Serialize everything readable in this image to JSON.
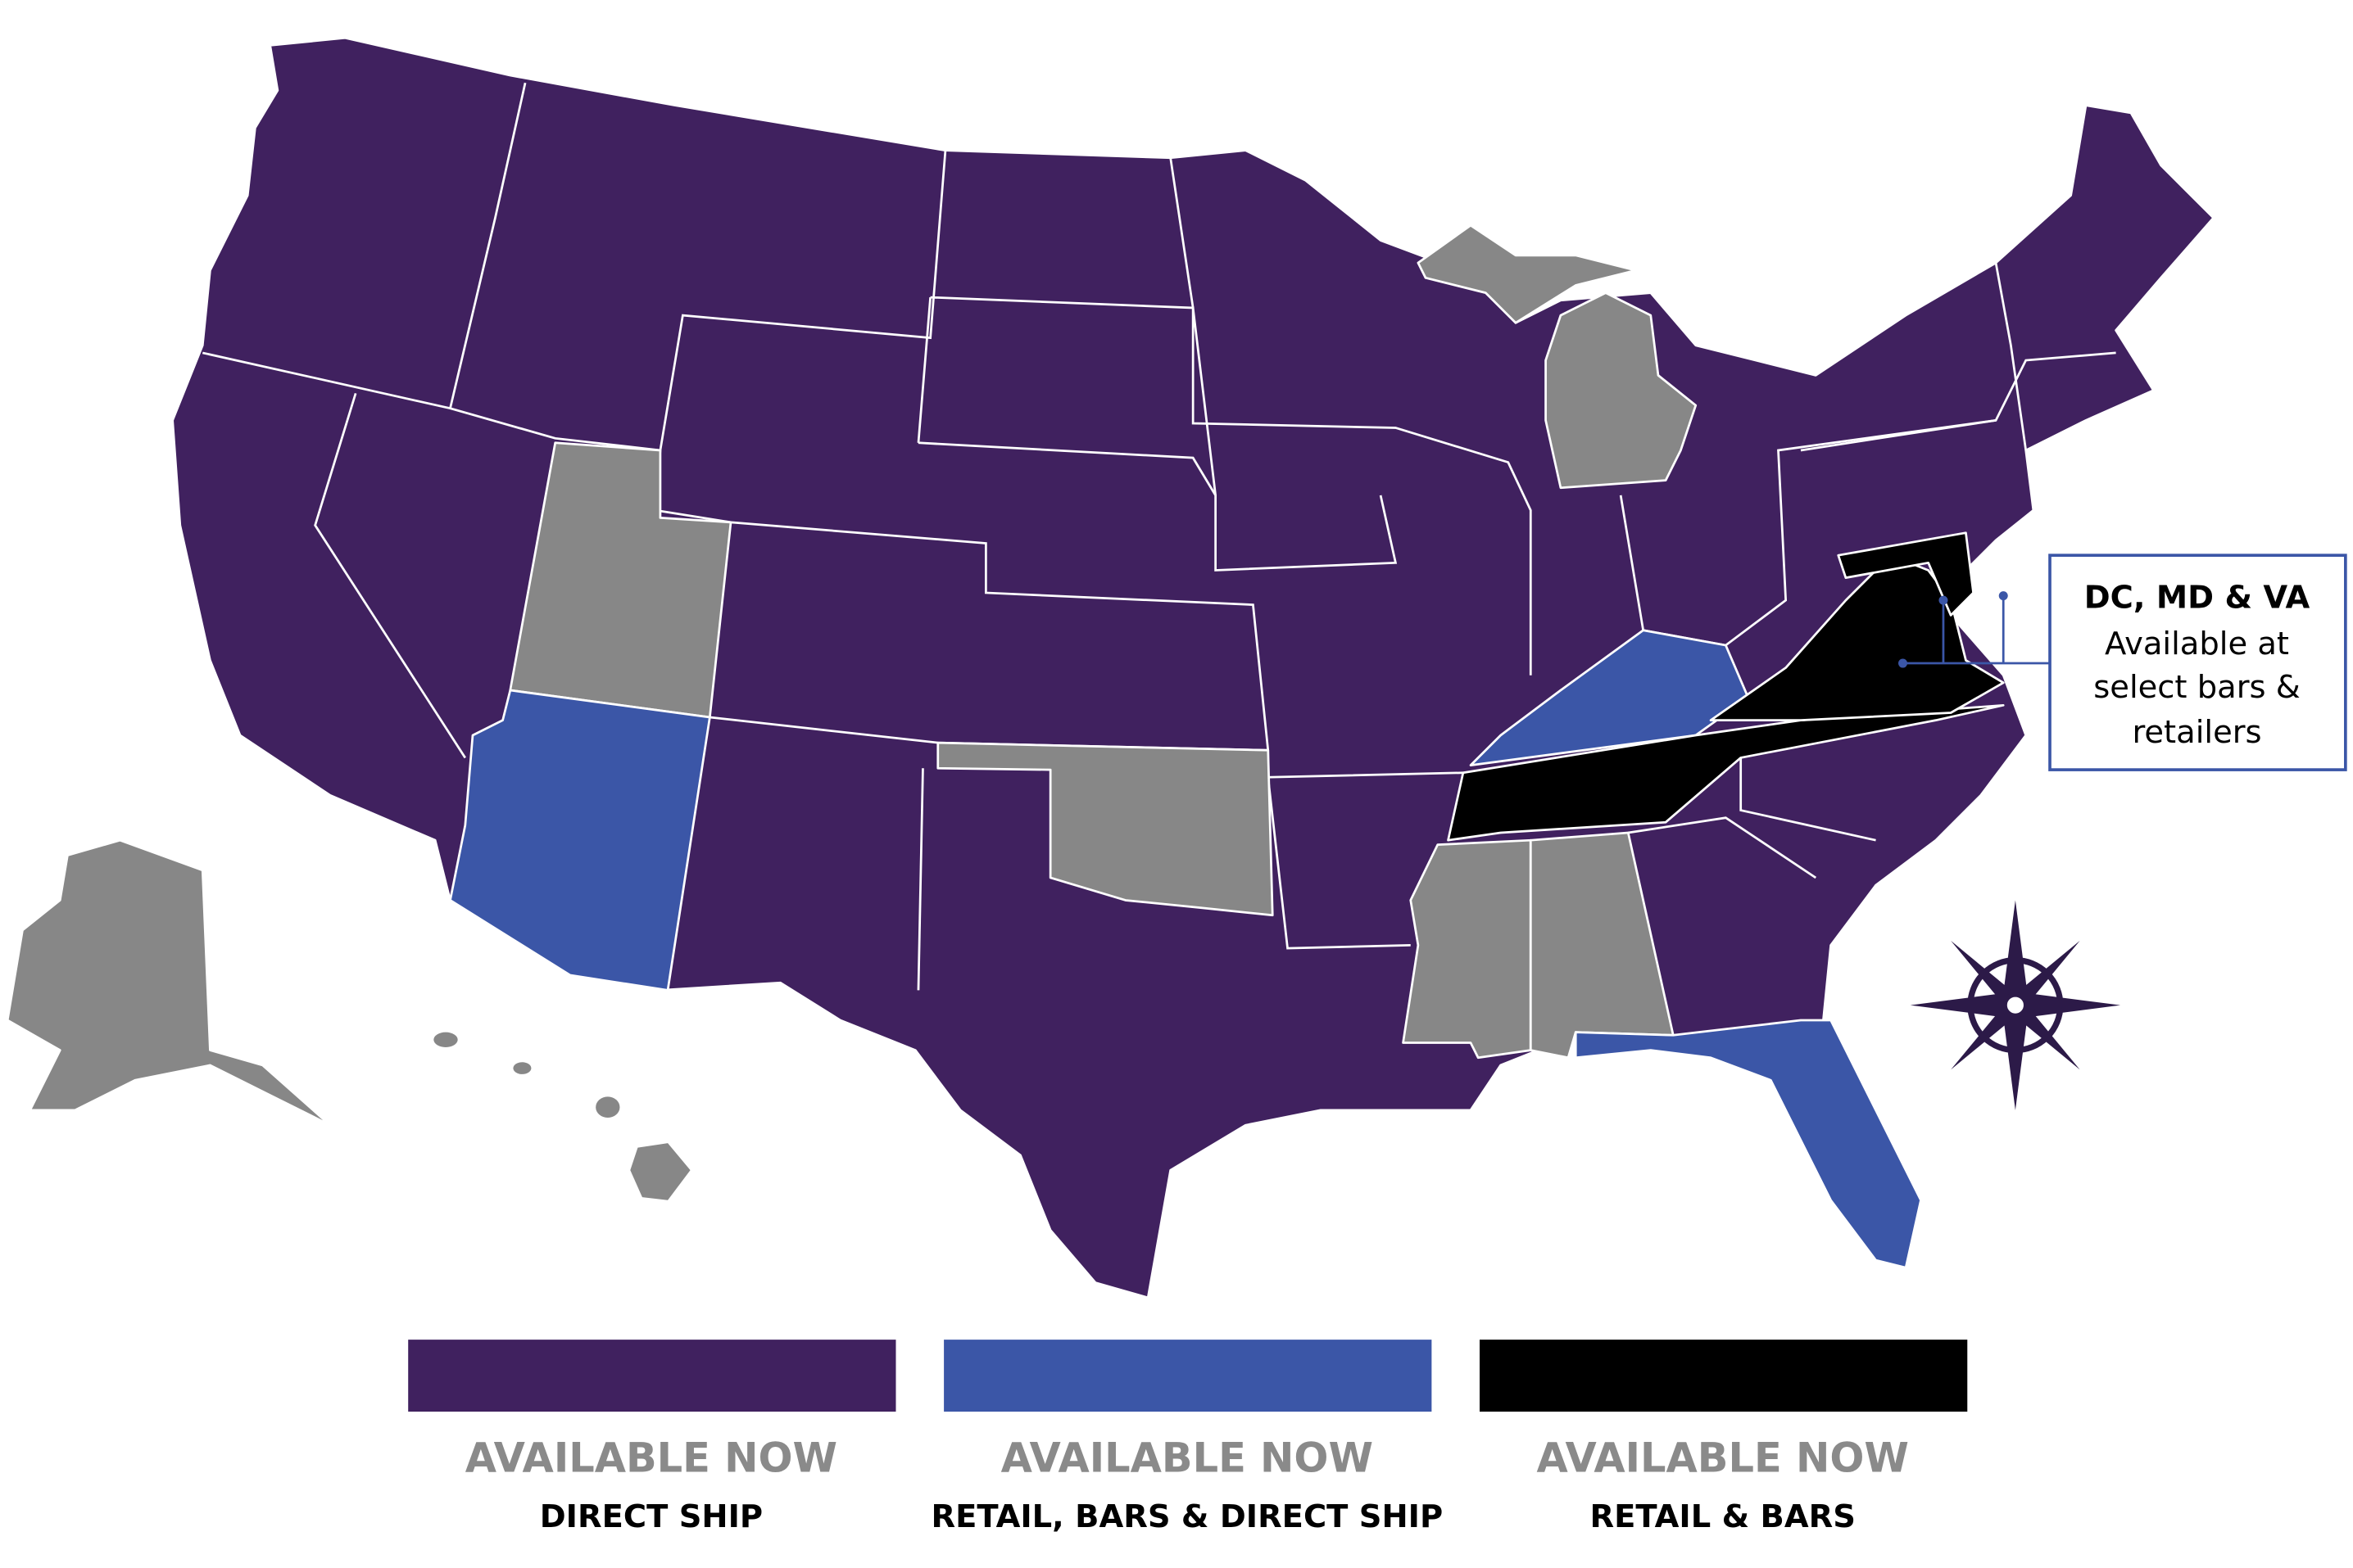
{
  "callout": {
    "title": "DC, MD & VA",
    "lines": [
      "Available at",
      "select bars &",
      "retailers"
    ]
  },
  "legend": [
    {
      "color": "#40215f",
      "heading": "AVAILABLE NOW",
      "label": "DIRECT SHIP"
    },
    {
      "color": "#3b56a7",
      "heading": "AVAILABLE NOW",
      "label": "RETAIL, BARS & DIRECT SHIP"
    },
    {
      "color": "#000000",
      "heading": "AVAILABLE NOW",
      "label": "RETAIL & BARS"
    }
  ]
}
